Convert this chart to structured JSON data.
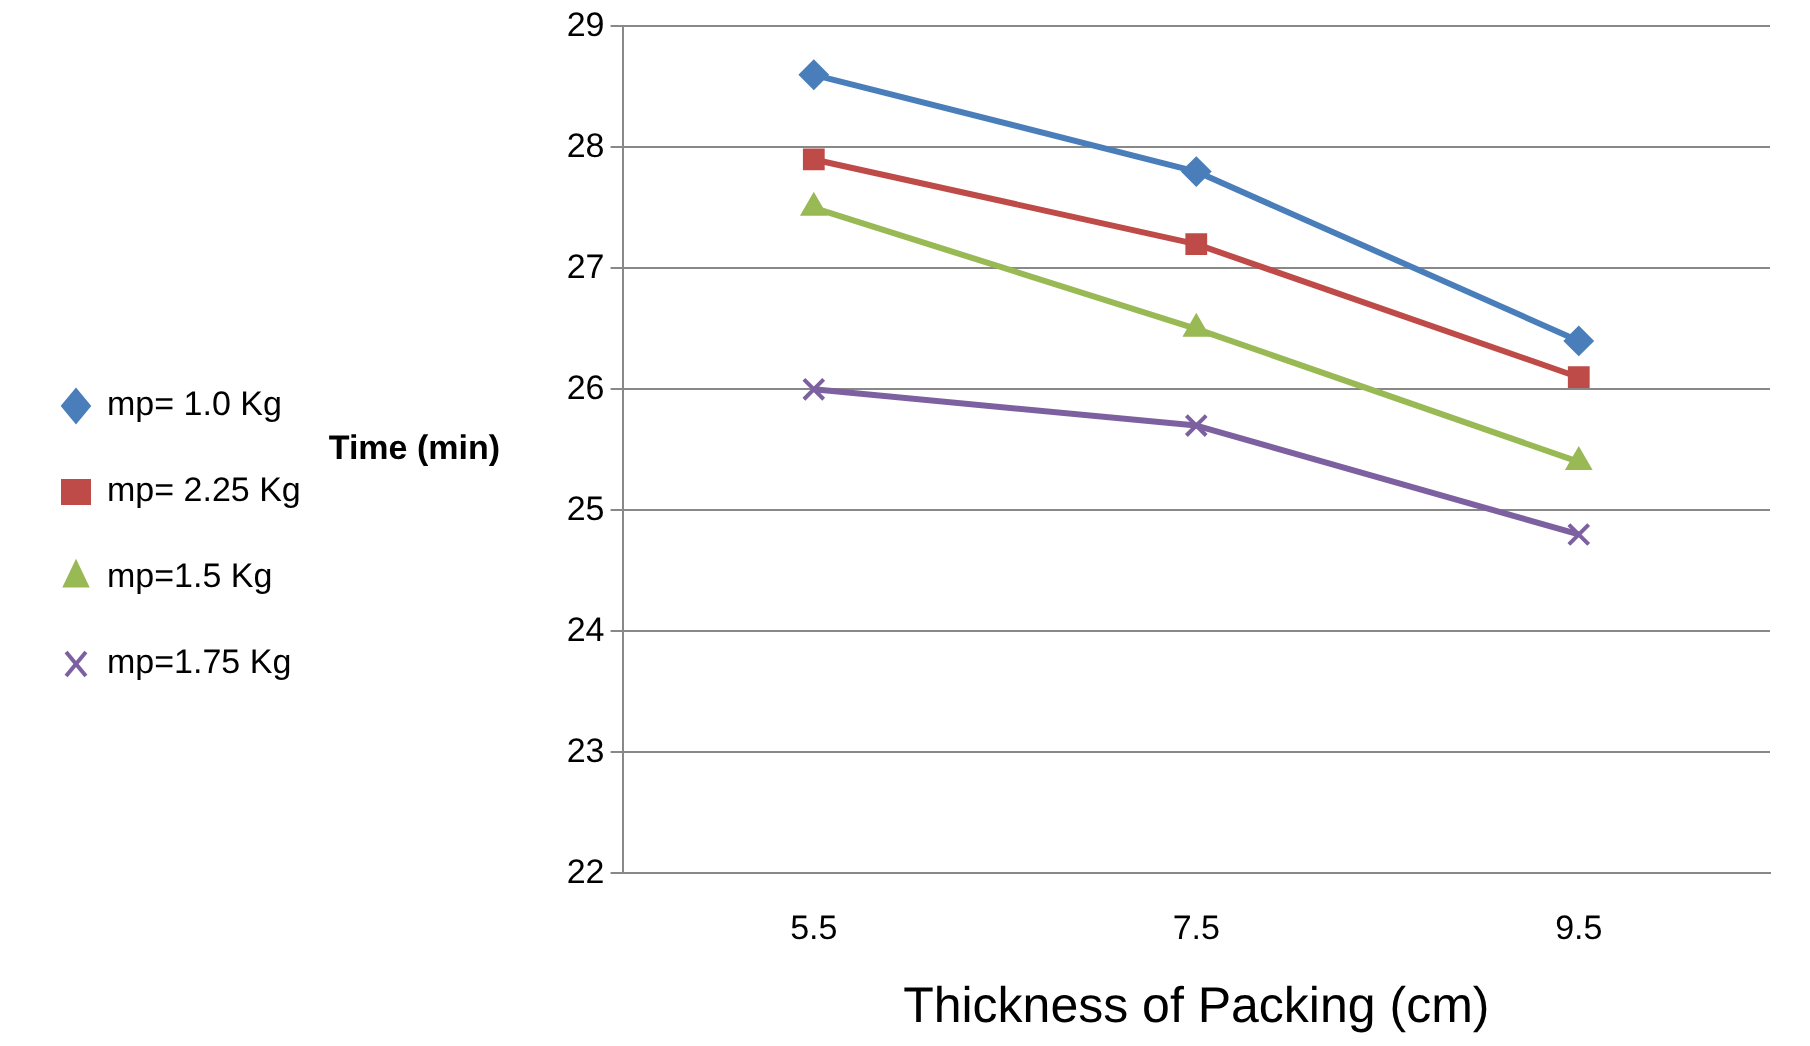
{
  "chart_data": {
    "type": "line",
    "xlabel": "Thickness of Packing (cm)",
    "ylabel": "Time (min)",
    "categories": [
      "5.5",
      "7.5",
      "9.5"
    ],
    "series": [
      {
        "name": "mp= 1.0 Kg",
        "color": "#4a7ebb",
        "marker": "diamond",
        "values": [
          28.6,
          27.8,
          26.4
        ]
      },
      {
        "name": "mp= 2.25 Kg",
        "color": "#be4b48",
        "marker": "square",
        "values": [
          27.9,
          27.2,
          26.1
        ]
      },
      {
        "name": "mp=1.5 Kg",
        "color": "#98b954",
        "marker": "triangle",
        "values": [
          27.5,
          26.5,
          25.4
        ]
      },
      {
        "name": "mp=1.75 Kg",
        "color": "#7d60a0",
        "marker": "cross",
        "values": [
          26.0,
          25.7,
          24.8
        ]
      }
    ],
    "ylim": [
      22,
      29
    ],
    "yticks": [
      22,
      23,
      24,
      25,
      26,
      27,
      28,
      29
    ],
    "grid": "y",
    "legend": "left",
    "line_style": "solid"
  }
}
